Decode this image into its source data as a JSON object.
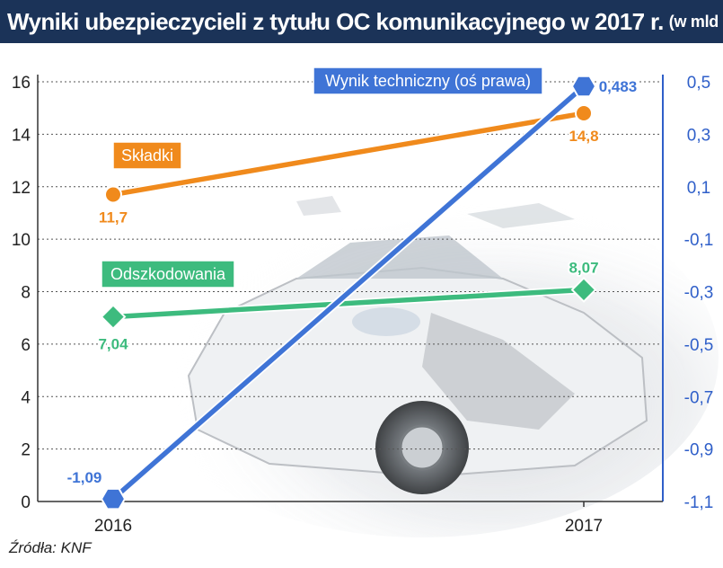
{
  "header": {
    "title": "Wyniki ubezpieczycieli z tytułu OC komunikacyjnego w 2017 r.",
    "unit": "(w mld zł)"
  },
  "source": "Źródła: KNF",
  "chart_data": {
    "type": "line",
    "categories": [
      "2016",
      "2017"
    ],
    "left_axis": {
      "ticks": [
        "0",
        "2",
        "4",
        "6",
        "8",
        "10",
        "12",
        "14",
        "16"
      ],
      "range": [
        0,
        16
      ]
    },
    "right_axis": {
      "ticks": [
        "-1,1",
        "-0,9",
        "-0,7",
        "-0,5",
        "-0,3",
        "-0,1",
        "0,1",
        "0,3",
        "0,5"
      ],
      "range": [
        -1.1,
        0.5
      ]
    },
    "grid": true,
    "series": [
      {
        "name": "Składki",
        "axis": "left",
        "values": [
          11.7,
          14.8
        ],
        "labels": [
          "11,7",
          "14,8"
        ],
        "color": "#f08a1c",
        "marker": "circle"
      },
      {
        "name": "Odszkodowania",
        "axis": "left",
        "values": [
          7.04,
          8.07
        ],
        "labels": [
          "7,04",
          "8,07"
        ],
        "color": "#3dbb7e",
        "marker": "diamond"
      },
      {
        "name": "Wynik techniczny (oś prawa)",
        "axis": "right",
        "values": [
          -1.09,
          0.483
        ],
        "labels": [
          "-1,09",
          "0,483"
        ],
        "color": "#3f74d6",
        "marker": "hexagon"
      }
    ]
  }
}
